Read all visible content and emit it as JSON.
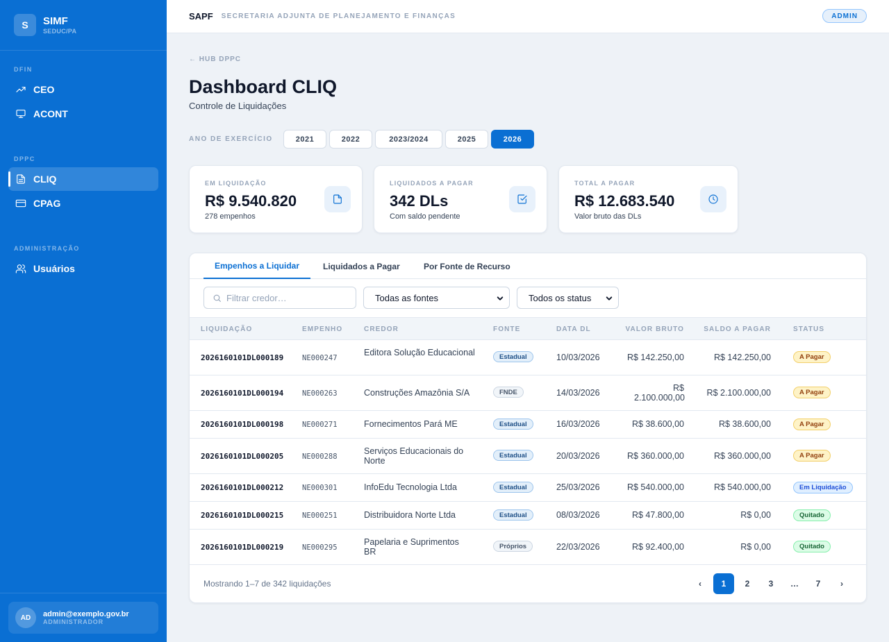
{
  "app": {
    "logo_letter": "S",
    "name": "SIMF",
    "subtitle": "SEDUC/PA"
  },
  "sidebar": {
    "sections": [
      {
        "title": "DFIN",
        "items": [
          {
            "label": "CEO",
            "icon": "trending-up-icon"
          },
          {
            "label": "ACONT",
            "icon": "monitor-icon"
          }
        ]
      },
      {
        "title": "DPPC",
        "items": [
          {
            "label": "CLIQ",
            "icon": "file-text-icon",
            "active": true
          },
          {
            "label": "CPAG",
            "icon": "credit-card-icon"
          }
        ]
      },
      {
        "title": "ADMINISTRAÇÃO",
        "items": [
          {
            "label": "Usuários",
            "icon": "users-icon"
          }
        ]
      }
    ],
    "user": {
      "initials": "AD",
      "email": "admin@exemplo.gov.br",
      "role": "ADMINISTRADOR"
    }
  },
  "topbar": {
    "title": "SAPF",
    "subtitle": "SECRETARIA ADJUNTA DE PLANEJAMENTO E FINANÇAS",
    "role_badge": "ADMIN"
  },
  "page": {
    "back_link": "← HUB DPPC",
    "title": "Dashboard CLIQ",
    "subtitle": "Controle de Liquidações",
    "year_label": "ANO DE EXERCÍCIO",
    "years": [
      "2021",
      "2022",
      "2023/2024",
      "2025",
      "2026"
    ],
    "active_year": "2026"
  },
  "kpis": [
    {
      "label": "EM LIQUIDAÇÃO",
      "value": "R$ 9.540.820",
      "note": "278 empenhos",
      "icon": "document-icon"
    },
    {
      "label": "LIQUIDADOS A PAGAR",
      "value": "342 DLs",
      "note": "Com saldo pendente",
      "icon": "check-square-icon"
    },
    {
      "label": "TOTAL A PAGAR",
      "value": "R$ 12.683.540",
      "note": "Valor bruto das DLs",
      "icon": "clock-icon"
    }
  ],
  "tabs": [
    "Empenhos a Liquidar",
    "Liquidados a Pagar",
    "Por Fonte de Recurso"
  ],
  "active_tab": "Empenhos a Liquidar",
  "filters": {
    "search_placeholder": "Filtrar credor…",
    "fonte_select": "Todas as fontes",
    "status_select": "Todos os status"
  },
  "table": {
    "columns": [
      "LIQUIDAÇÃO",
      "EMPENHO",
      "CREDOR",
      "FONTE",
      "DATA DL",
      "VALOR BRUTO",
      "SALDO A PAGAR",
      "STATUS"
    ],
    "rows": [
      {
        "liquidacao": "2026160101DL000189",
        "empenho": "NE000247",
        "credor": "Editora Solução Educacional",
        "fonte": "Estadual",
        "data": "10/03/2026",
        "bruto": "R$ 142.250,00",
        "saldo": "R$ 142.250,00",
        "status": "A Pagar"
      },
      {
        "liquidacao": "2026160101DL000194",
        "empenho": "NE000263",
        "credor": "Construções Amazônia S/A",
        "fonte": "FNDE",
        "data": "14/03/2026",
        "bruto": "R$ 2.100.000,00",
        "saldo": "R$ 2.100.000,00",
        "status": "A Pagar"
      },
      {
        "liquidacao": "2026160101DL000198",
        "empenho": "NE000271",
        "credor": "Fornecimentos Pará ME",
        "fonte": "Estadual",
        "data": "16/03/2026",
        "bruto": "R$ 38.600,00",
        "saldo": "R$ 38.600,00",
        "status": "A Pagar"
      },
      {
        "liquidacao": "2026160101DL000205",
        "empenho": "NE000288",
        "credor": "Serviços Educacionais do Norte",
        "fonte": "Estadual",
        "data": "20/03/2026",
        "bruto": "R$ 360.000,00",
        "saldo": "R$ 360.000,00",
        "status": "A Pagar"
      },
      {
        "liquidacao": "2026160101DL000212",
        "empenho": "NE000301",
        "credor": "InfoEdu Tecnologia Ltda",
        "fonte": "Estadual",
        "data": "25/03/2026",
        "bruto": "R$ 540.000,00",
        "saldo": "R$ 540.000,00",
        "status": "Em Liquidação"
      },
      {
        "liquidacao": "2026160101DL000215",
        "empenho": "NE000251",
        "credor": "Distribuidora Norte Ltda",
        "fonte": "Estadual",
        "data": "08/03/2026",
        "bruto": "R$ 47.800,00",
        "saldo": "R$ 0,00",
        "status": "Quitado"
      },
      {
        "liquidacao": "2026160101DL000219",
        "empenho": "NE000295",
        "credor": "Papelaria e Suprimentos BR",
        "fonte": "Próprios",
        "data": "22/03/2026",
        "bruto": "R$ 92.400,00",
        "saldo": "R$ 0,00",
        "status": "Quitado"
      }
    ]
  },
  "pagination": {
    "summary": "Mostrando 1–7 de 342 liquidações",
    "prev": "‹",
    "next": "›",
    "pages": [
      "1",
      "2",
      "3",
      "…",
      "7"
    ],
    "current": "1"
  },
  "colors": {
    "primary": "#0a6fd3",
    "background": "#eef2f7",
    "status_a_pagar": "#fef3c7",
    "status_em_liquidacao": "#e0efff",
    "status_quitado": "#dcfce7"
  }
}
